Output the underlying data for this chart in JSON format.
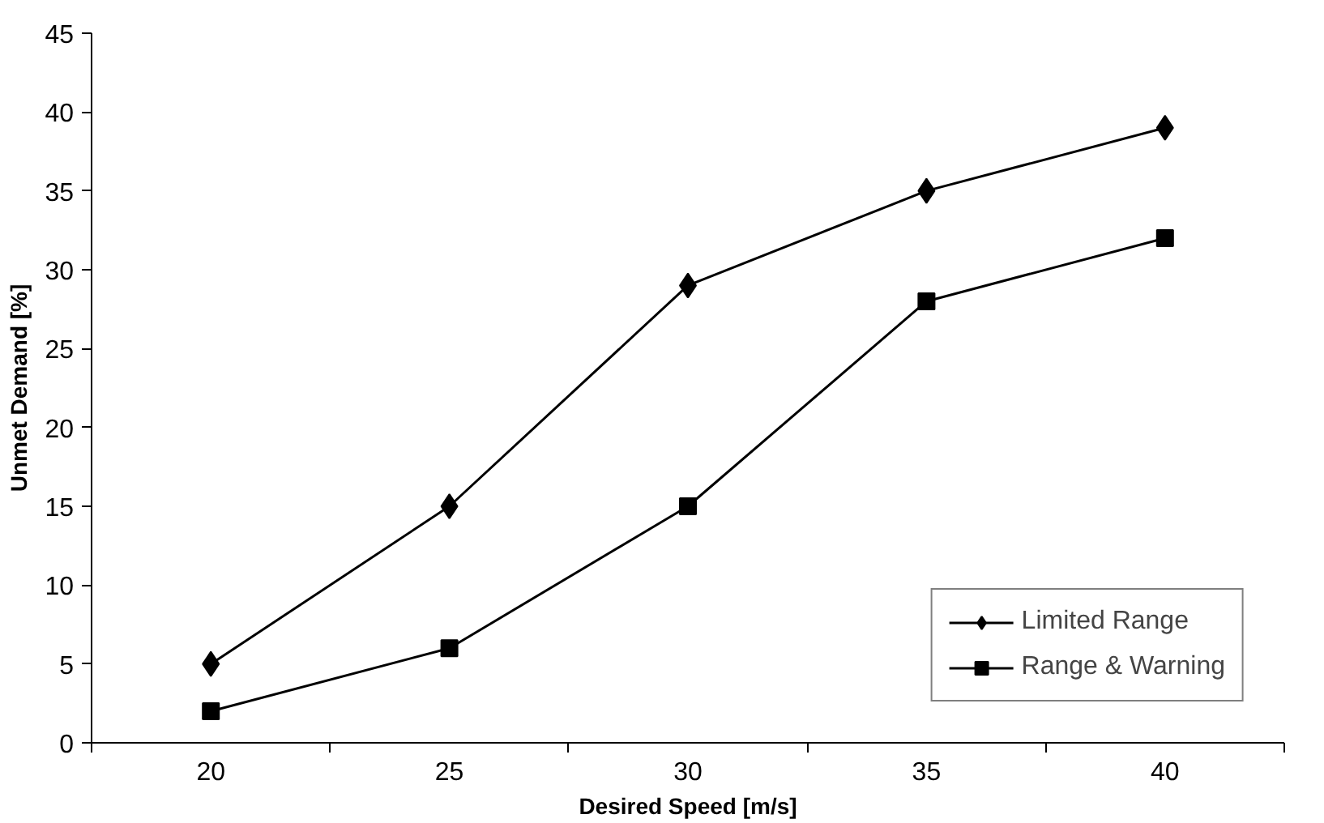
{
  "chart_data": {
    "type": "line",
    "xlabel": "Desired Speed [m/s]",
    "ylabel": "Unmet Demand [%]",
    "categories": [
      "20",
      "25",
      "30",
      "35",
      "40"
    ],
    "series": [
      {
        "name": "Limited Range",
        "color": "#000000",
        "marker": "diamond",
        "values": [
          5,
          15,
          29,
          35,
          39
        ]
      },
      {
        "name": "Range & Warning",
        "color": "#000000",
        "marker": "square",
        "values": [
          2,
          6,
          15,
          28,
          32
        ]
      }
    ],
    "ylim": [
      0,
      45
    ],
    "yticks": [
      0,
      5,
      10,
      15,
      20,
      25,
      30,
      35,
      40,
      45
    ],
    "grid": false,
    "legend": "bottom right",
    "line_style": "solid"
  }
}
